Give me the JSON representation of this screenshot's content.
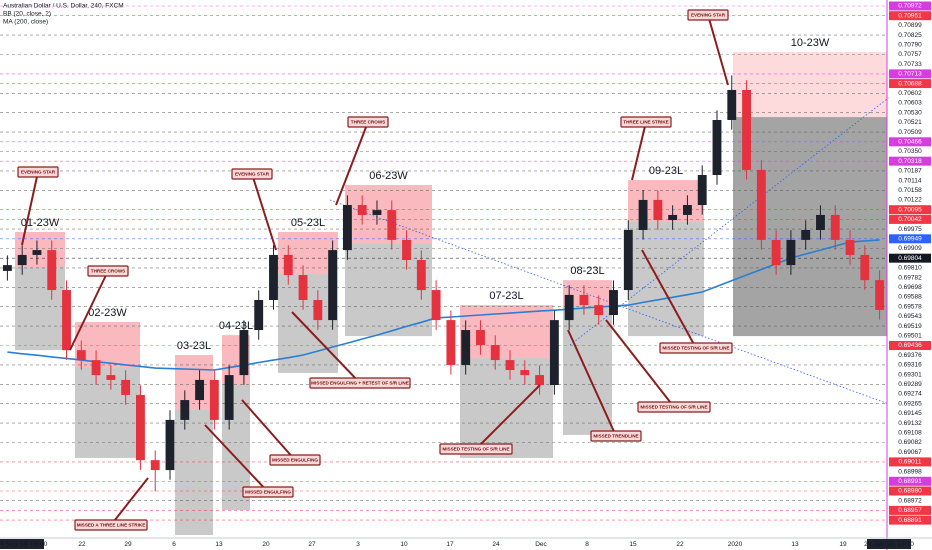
{
  "chart_data": {
    "type": "candlestick",
    "title": "Australian Dollar / U.S. Dollar, 240, FXCM",
    "indicators": [
      "BB (20, close, 2)",
      "MA (200, close)"
    ],
    "up_color": "#1e222d",
    "down_color": "#e5323f",
    "ylim": [
      0.688,
      0.71
    ],
    "open": [
      0.6989,
      0.69914,
      0.69956,
      0.69976,
      0.69811,
      0.69563,
      0.69522,
      0.6946,
      0.6944,
      0.69378,
      0.69109,
      0.69068,
      0.69275,
      0.69357,
      0.6944,
      0.69275,
      0.6946,
      0.69646,
      0.6977,
      0.69956,
      0.69873,
      0.6977,
      0.69687,
      0.69976,
      0.70162,
      0.70121,
      0.70141,
      0.70018,
      0.69935,
      0.69811,
      0.69687,
      0.69502,
      0.69646,
      0.69584,
      0.69522,
      0.69481,
      0.6946,
      0.69419,
      0.69687,
      0.69791,
      0.69749,
      0.69708,
      0.69811,
      0.70059,
      0.70183,
      0.701,
      0.70121,
      0.70162,
      0.70286,
      0.70513,
      0.70637,
      0.70307,
      0.70018,
      0.69914,
      0.70018,
      0.70059,
      0.70121,
      0.70018,
      0.69956,
      0.69852
    ],
    "high": [
      0.69954,
      0.69996,
      0.70016,
      0.70016,
      0.69851,
      0.69603,
      0.69562,
      0.695,
      0.6948,
      0.69418,
      0.69149,
      0.69315,
      0.69397,
      0.6948,
      0.6948,
      0.695,
      0.69686,
      0.6981,
      0.69996,
      0.69996,
      0.69913,
      0.6981,
      0.70016,
      0.70202,
      0.70202,
      0.70181,
      0.70181,
      0.70058,
      0.69975,
      0.69851,
      0.69727,
      0.69686,
      0.69686,
      0.69624,
      0.69562,
      0.69521,
      0.695,
      0.69727,
      0.69831,
      0.69831,
      0.69789,
      0.69851,
      0.70099,
      0.70223,
      0.70223,
      0.70161,
      0.70202,
      0.70326,
      0.70553,
      0.70697,
      0.70677,
      0.70347,
      0.70058,
      0.70058,
      0.70099,
      0.70161,
      0.70161,
      0.70058,
      0.69996,
      0.69892
    ],
    "low": [
      0.6985,
      0.69874,
      0.69916,
      0.69771,
      0.69523,
      0.69482,
      0.6942,
      0.694,
      0.69338,
      0.69069,
      0.6898,
      0.69028,
      0.69235,
      0.69317,
      0.69235,
      0.69235,
      0.6942,
      0.69606,
      0.6973,
      0.69833,
      0.6973,
      0.69647,
      0.69647,
      0.69936,
      0.70081,
      0.70081,
      0.69978,
      0.69895,
      0.69771,
      0.69647,
      0.69462,
      0.69462,
      0.69544,
      0.69482,
      0.69441,
      0.6942,
      0.69379,
      0.69379,
      0.69647,
      0.69709,
      0.69668,
      0.69668,
      0.69771,
      0.70019,
      0.7006,
      0.7006,
      0.70081,
      0.70122,
      0.70246,
      0.70473,
      0.70267,
      0.69978,
      0.69874,
      0.69874,
      0.69978,
      0.70019,
      0.69978,
      0.69916,
      0.69812,
      0.69689
    ],
    "close": [
      0.69914,
      0.69956,
      0.69976,
      0.69811,
      0.69563,
      0.69522,
      0.6946,
      0.6944,
      0.69378,
      0.69109,
      0.69068,
      0.69275,
      0.69357,
      0.6944,
      0.69275,
      0.6946,
      0.69646,
      0.6977,
      0.69956,
      0.69873,
      0.6977,
      0.69687,
      0.69976,
      0.70162,
      0.70121,
      0.70141,
      0.70018,
      0.69935,
      0.69811,
      0.69687,
      0.69502,
      0.69646,
      0.69584,
      0.69522,
      0.69481,
      0.6946,
      0.69419,
      0.69687,
      0.69791,
      0.69749,
      0.69708,
      0.69811,
      0.70059,
      0.70183,
      0.701,
      0.70121,
      0.70162,
      0.70286,
      0.70513,
      0.70637,
      0.70307,
      0.70018,
      0.69914,
      0.70018,
      0.70059,
      0.70121,
      0.70018,
      0.69956,
      0.69852,
      0.69729
    ],
    "ma": {
      "color": "#2a7fd4",
      "values": [
        0.69555,
        0.69548,
        0.69542,
        0.69535,
        0.69529,
        0.69522,
        0.69515,
        0.69509,
        0.69502,
        0.69496,
        0.69489,
        0.69487,
        0.69485,
        0.69483,
        0.69481,
        0.69491,
        0.69501,
        0.69512,
        0.69522,
        0.69532,
        0.69543,
        0.69559,
        0.69576,
        0.69592,
        0.69609,
        0.69625,
        0.69643,
        0.69661,
        0.69678,
        0.69696,
        0.697,
        0.69704,
        0.69708,
        0.69712,
        0.69716,
        0.6972,
        0.69724,
        0.69728,
        0.69732,
        0.69737,
        0.69741,
        0.69745,
        0.69749,
        0.6976,
        0.69771,
        0.69781,
        0.69792,
        0.69803,
        0.69826,
        0.6985,
        0.69873,
        0.69896,
        0.6992,
        0.69943,
        0.6996,
        0.69976,
        0.69993,
        0.70009,
        0.70014,
        0.70018
      ]
    },
    "positions": [
      {
        "label": "01-23W",
        "top": 0.70051,
        "entry": 0.69906,
        "bottom": 0.69563
      },
      {
        "label": "02-23W",
        "top": 0.69679,
        "entry": 0.69493,
        "bottom": 0.69118
      },
      {
        "label": "03-23L",
        "top": 0.69543,
        "entry": 0.69316,
        "bottom": 0.688
      },
      {
        "label": "04-23L",
        "top": 0.69625,
        "entry": 0.69419,
        "bottom": 0.68903
      },
      {
        "label": "05-23L",
        "top": 0.70051,
        "entry": 0.69877,
        "bottom": 0.69469
      },
      {
        "label": "06-23W",
        "top": 0.70245,
        "entry": 0.70001,
        "bottom": 0.69621
      },
      {
        "label": "07-23L",
        "top": 0.69749,
        "entry": 0.6953,
        "bottom": 0.69118
      },
      {
        "label": "08-23L",
        "top": 0.69852,
        "entry": 0.69749,
        "bottom": 0.69213
      },
      {
        "label": "09-23L",
        "top": 0.70265,
        "entry": 0.70092,
        "bottom": 0.69621
      },
      {
        "label": "10-23W",
        "top": 0.70794,
        "entry": 0.70525,
        "bottom": 0.69621
      }
    ],
    "annotations": [
      "EVENING STAR",
      "THREE CROWS",
      "EVENING STAR",
      "THREE CROWS",
      "THREE LINE STRIKE",
      "EVENING STAR",
      "MISSED A THREE LINE STRIKE",
      "MISSED ENGULFING",
      "MISSED ENGULFING",
      "MISSED ENGULFING + RETEST OF S/R LINE",
      "MISSED TESTING OF S/R LINE",
      "MISSED TRENDLINE",
      "MISSED TESTING OF S/R LINE",
      "MISSED TESTING OF S/R LINE"
    ],
    "x_labels": [
      "04 Sep '19  09:00",
      "22",
      "29",
      "6",
      "13",
      "20",
      "27",
      "3",
      "10",
      "17",
      "24",
      "Dec",
      "8",
      "15",
      "22",
      "2020",
      "13",
      "19",
      "24 Jan '20  13:00"
    ],
    "price_labels": [
      {
        "text": "0.70972",
        "color": "#d63ce0"
      },
      {
        "text": "0.70951",
        "color": "#f23645"
      },
      {
        "text": "0.70899",
        "color": "#ffffff"
      },
      {
        "text": "0.70825",
        "color": "#ffffff"
      },
      {
        "text": "0.70790",
        "color": "#ffffff"
      },
      {
        "text": "0.70757",
        "color": "#ffffff"
      },
      {
        "text": "0.70733",
        "color": "#ffffff"
      },
      {
        "text": "0.70713",
        "color": "#d63ce0"
      },
      {
        "text": "0.70688",
        "color": "#f23645"
      },
      {
        "text": "0.70602",
        "color": "#ffffff"
      },
      {
        "text": "0.70603",
        "color": "#ffffff"
      },
      {
        "text": "0.70530",
        "color": "#ffffff"
      },
      {
        "text": "0.70521",
        "color": "#ffffff"
      },
      {
        "text": "0.70509",
        "color": "#ffffff"
      },
      {
        "text": "0.70466",
        "color": "#d63ce0"
      },
      {
        "text": "0.70350",
        "color": "#ffffff"
      },
      {
        "text": "0.70318",
        "color": "#d63ce0"
      },
      {
        "text": "0.70187",
        "color": "#ffffff"
      },
      {
        "text": "0.70114",
        "color": "#ffffff"
      },
      {
        "text": "0.70158",
        "color": "#ffffff"
      },
      {
        "text": "0.70122",
        "color": "#ffffff"
      },
      {
        "text": "0.70095",
        "color": "#f23645"
      },
      {
        "text": "0.70042",
        "color": "#f23645"
      },
      {
        "text": "0.69975",
        "color": "#ffffff"
      },
      {
        "text": "0.69949",
        "color": "#2962ff"
      },
      {
        "text": "0.69909",
        "color": "#ffffff"
      },
      {
        "text": "0.69804",
        "color": "#131722"
      },
      {
        "text": "0.69810",
        "color": "#ffffff"
      },
      {
        "text": "0.69782",
        "color": "#ffffff"
      },
      {
        "text": "0.69698",
        "color": "#ffffff"
      },
      {
        "text": "0.69588",
        "color": "#ffffff"
      },
      {
        "text": "0.69578",
        "color": "#ffffff"
      },
      {
        "text": "0.69543",
        "color": "#ffffff"
      },
      {
        "text": "0.69519",
        "color": "#ffffff"
      },
      {
        "text": "0.69501",
        "color": "#ffffff"
      },
      {
        "text": "0.69436",
        "color": "#f23645"
      },
      {
        "text": "0.69376",
        "color": "#ffffff"
      },
      {
        "text": "0.69316",
        "color": "#ffffff"
      },
      {
        "text": "0.69301",
        "color": "#ffffff"
      },
      {
        "text": "0.69289",
        "color": "#ffffff"
      },
      {
        "text": "0.69274",
        "color": "#ffffff"
      },
      {
        "text": "0.69265",
        "color": "#ffffff"
      },
      {
        "text": "0.69145",
        "color": "#ffffff"
      },
      {
        "text": "0.69132",
        "color": "#ffffff"
      },
      {
        "text": "0.69108",
        "color": "#ffffff"
      },
      {
        "text": "0.69082",
        "color": "#ffffff"
      },
      {
        "text": "0.69067",
        "color": "#ffffff"
      },
      {
        "text": "0.69011",
        "color": "#f23645"
      },
      {
        "text": "0.68998",
        "color": "#ffffff"
      },
      {
        "text": "0.68991",
        "color": "#d63ce0"
      },
      {
        "text": "0.68980",
        "color": "#f23645"
      },
      {
        "text": "0.68972",
        "color": "#ffffff"
      },
      {
        "text": "0.68957",
        "color": "#f23645"
      },
      {
        "text": "0.68891",
        "color": "#f23645"
      }
    ]
  }
}
